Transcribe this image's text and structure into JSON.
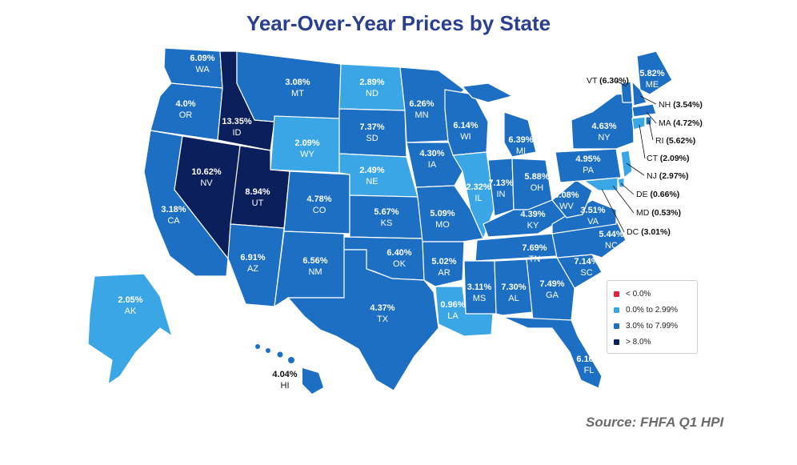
{
  "title": "Year-Over-Year Prices by State",
  "source": "Source: FHFA Q1 HPI",
  "legend": [
    {
      "label": "< 0.0%",
      "color": "#e0243a"
    },
    {
      "label": "0.0% to 2.99%",
      "color": "#3aa6e6"
    },
    {
      "label": "3.0% to 7.99%",
      "color": "#1c6fc2"
    },
    {
      "label": "> 8.0%",
      "color": "#0b1f5c"
    }
  ],
  "states": {
    "WA": {
      "abbr": "WA",
      "value": "6.09%"
    },
    "OR": {
      "abbr": "OR",
      "value": "4.0%"
    },
    "CA": {
      "abbr": "CA",
      "value": "3.18%"
    },
    "ID": {
      "abbr": "ID",
      "value": "13.35%"
    },
    "NV": {
      "abbr": "NV",
      "value": "10.62%"
    },
    "UT": {
      "abbr": "UT",
      "value": "8.94%"
    },
    "AZ": {
      "abbr": "AZ",
      "value": "6.91%"
    },
    "MT": {
      "abbr": "MT",
      "value": "3.08%"
    },
    "WY": {
      "abbr": "WY",
      "value": "2.09%"
    },
    "CO": {
      "abbr": "CO",
      "value": "4.78%"
    },
    "NM": {
      "abbr": "NM",
      "value": "6.56%"
    },
    "ND": {
      "abbr": "ND",
      "value": "2.89%"
    },
    "SD": {
      "abbr": "SD",
      "value": "7.37%"
    },
    "NE": {
      "abbr": "NE",
      "value": "2.49%"
    },
    "KS": {
      "abbr": "KS",
      "value": "5.67%"
    },
    "OK": {
      "abbr": "OK",
      "value": "6.40%"
    },
    "TX": {
      "abbr": "TX",
      "value": "4.37%"
    },
    "MN": {
      "abbr": "MN",
      "value": "6.26%"
    },
    "IA": {
      "abbr": "IA",
      "value": "4.30%"
    },
    "MO": {
      "abbr": "MO",
      "value": "5.09%"
    },
    "AR": {
      "abbr": "AR",
      "value": "5.02%"
    },
    "LA": {
      "abbr": "LA",
      "value": "0.96%"
    },
    "WI": {
      "abbr": "WI",
      "value": "6.14%"
    },
    "IL": {
      "abbr": "IL",
      "value": "2.32%"
    },
    "MI": {
      "abbr": "MI",
      "value": "6.39%"
    },
    "IN": {
      "abbr": "IN",
      "value": "7.13%"
    },
    "OH": {
      "abbr": "OH",
      "value": "5.88%"
    },
    "KY": {
      "abbr": "KY",
      "value": "4.39%"
    },
    "TN": {
      "abbr": "TN",
      "value": "7.69%"
    },
    "MS": {
      "abbr": "MS",
      "value": "3.11%"
    },
    "AL": {
      "abbr": "AL",
      "value": "7.30%"
    },
    "GA": {
      "abbr": "GA",
      "value": "7.49%"
    },
    "FL": {
      "abbr": "FL",
      "value": "6.16%"
    },
    "SC": {
      "abbr": "SC",
      "value": "7.14%"
    },
    "NC": {
      "abbr": "NC",
      "value": "5.44%"
    },
    "VA": {
      "abbr": "VA",
      "value": "3.51%"
    },
    "WV": {
      "abbr": "WV",
      "value": "6.08%"
    },
    "PA": {
      "abbr": "PA",
      "value": "4.95%"
    },
    "NY": {
      "abbr": "NY",
      "value": "4.63%"
    },
    "ME": {
      "abbr": "ME",
      "value": "5.82%"
    },
    "AK": {
      "abbr": "AK",
      "value": "2.05%"
    },
    "HI": {
      "abbr": "HI",
      "value": "4.04%"
    }
  },
  "callouts": {
    "VT": {
      "abbr": "VT",
      "value": "(6.30%)"
    },
    "NH": {
      "abbr": "NH",
      "value": "(3.54%)"
    },
    "MA": {
      "abbr": "MA",
      "value": "(4.72%)"
    },
    "RI": {
      "abbr": "RI",
      "value": "(5.62%)"
    },
    "CT": {
      "abbr": "CT",
      "value": "(2.09%)"
    },
    "NJ": {
      "abbr": "NJ",
      "value": "(2.97%)"
    },
    "DE": {
      "abbr": "DE",
      "value": "(0.66%)"
    },
    "MD": {
      "abbr": "MD",
      "value": "(0.53%)"
    },
    "DC": {
      "abbr": "DC",
      "value": "(3.01%)"
    }
  }
}
